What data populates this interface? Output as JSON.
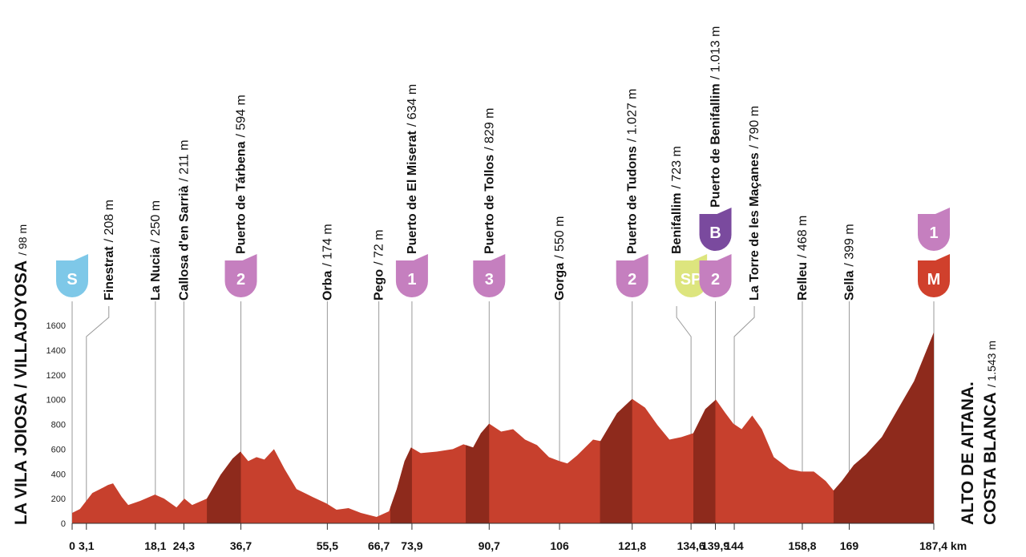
{
  "chart_data": {
    "type": "area",
    "color": "#c7402d",
    "climb_color": "#8e2a1c",
    "x": [
      0,
      1.7,
      4.4,
      6.1,
      7.8,
      8.9,
      10.8,
      12.2,
      14.8,
      18.0,
      20.0,
      22.7,
      24.4,
      26.1,
      29.3,
      32.3,
      34.9,
      36.6,
      38.3,
      40.1,
      41.8,
      43.9,
      46.2,
      48.8,
      52.3,
      55.3,
      57.5,
      60.1,
      62.8,
      66.2,
      68.9,
      70.6,
      72.3,
      73.7,
      75.8,
      79.3,
      82.8,
      85.1,
      87.2,
      88.9,
      90.7,
      93.3,
      95.9,
      98.5,
      101.1,
      103.7,
      106.0,
      107.7,
      109.8,
      113.3,
      114.9,
      118.5,
      121.8,
      124.6,
      127.3,
      129.9,
      132.5,
      135.1,
      137.7,
      140.0,
      142.1,
      143.8,
      145.6,
      147.9,
      150.0,
      152.6,
      156.0,
      158.6,
      161.3,
      163.9,
      165.6,
      167.4,
      170.0,
      172.6,
      176.1,
      179.6,
      183.1,
      187.4
    ],
    "values": [
      84,
      116,
      245,
      277,
      310,
      323,
      213,
      148,
      181,
      232,
      200,
      129,
      200,
      148,
      200,
      393,
      523,
      580,
      503,
      535,
      516,
      600,
      439,
      277,
      213,
      161,
      110,
      123,
      84,
      52,
      97,
      277,
      503,
      613,
      568,
      580,
      600,
      639,
      613,
      729,
      806,
      742,
      761,
      677,
      632,
      535,
      503,
      484,
      548,
      677,
      665,
      890,
      1006,
      935,
      794,
      677,
      697,
      729,
      923,
      1000,
      890,
      806,
      761,
      871,
      761,
      535,
      439,
      419,
      419,
      342,
      265,
      342,
      471,
      555,
      697,
      923,
      1148,
      1543
    ],
    "climbs": [
      {
        "start": 29.3,
        "end": 36.7
      },
      {
        "start": 69.2,
        "end": 73.9
      },
      {
        "start": 85.6,
        "end": 90.7
      },
      {
        "start": 114.8,
        "end": 121.8
      },
      {
        "start": 135.1,
        "end": 139.9
      },
      {
        "start": 165.6,
        "end": 187.4
      }
    ],
    "xlim": [
      0,
      187.4
    ],
    "ylim": [
      0,
      1600
    ],
    "yticks": [
      0,
      200,
      400,
      600,
      800,
      1000,
      1200,
      1400,
      1600
    ],
    "xticks": [
      0,
      {
        "value": 3.1,
        "label": "3,1"
      },
      {
        "value": 18.1,
        "label": "18,1"
      },
      {
        "value": 24.3,
        "label": "24,3"
      },
      {
        "value": 36.7,
        "label": "36,7"
      },
      {
        "value": 55.5,
        "label": "55,5"
      },
      {
        "value": 66.7,
        "label": "66,7"
      },
      {
        "value": 73.9,
        "label": "73,9"
      },
      {
        "value": 90.7,
        "label": "90,7"
      },
      106,
      {
        "value": 121.8,
        "label": "121,8"
      },
      {
        "value": 134.6,
        "label": "134,6"
      },
      {
        "value": 139.9,
        "label": "139,9"
      },
      144,
      {
        "value": 158.8,
        "label": "158,8"
      },
      169,
      {
        "value": 187.4,
        "label": "187,4 km"
      }
    ],
    "waypoints": [
      {
        "name": [
          "LA VILA JOIOSA / VILLAJOYOSA"
        ],
        "altitude": "/ 98 m",
        "badges": [
          {
            "text": "S",
            "color": "#7ec8e8"
          }
        ]
      },
      {
        "name": [
          "Finestrat"
        ],
        "altitude": "/ 208 m",
        "badges": []
      },
      {
        "name": [
          "La Nucia"
        ],
        "altitude": "/ 250 m",
        "badges": []
      },
      {
        "name": [
          "Callosa d'en Sarrià"
        ],
        "altitude": "/ 211 m",
        "badges": []
      },
      {
        "name": [
          "Puerto de Tárbena"
        ],
        "altitude": "/ 594 m",
        "badges": [
          {
            "text": "2",
            "color": "#c57fbf"
          }
        ]
      },
      {
        "name": [
          "Orba"
        ],
        "altitude": "/ 174 m",
        "badges": []
      },
      {
        "name": [
          "Pego"
        ],
        "altitude": "/ 72 m",
        "badges": []
      },
      {
        "name": [
          "Puerto de El Miserat"
        ],
        "altitude": "/ 634 m",
        "badges": [
          {
            "text": "1",
            "color": "#c57fbf"
          }
        ]
      },
      {
        "name": [
          "Puerto de Tollos"
        ],
        "altitude": "/ 829 m",
        "badges": [
          {
            "text": "3",
            "color": "#c57fbf"
          }
        ]
      },
      {
        "name": [
          "Gorga"
        ],
        "altitude": "/ 550 m",
        "badges": []
      },
      {
        "name": [
          "Puerto de Tudons"
        ],
        "altitude": "/ 1.027 m",
        "badges": [
          {
            "text": "2",
            "color": "#c57fbf"
          }
        ]
      },
      {
        "name": [
          "Benifallim"
        ],
        "altitude": "/ 723 m",
        "badges": [
          {
            "text": "SP",
            "color": "#dde57e"
          }
        ]
      },
      {
        "name": [
          "Puerto de Benifallim"
        ],
        "altitude": "/ 1.013 m",
        "badges": [
          {
            "text": "2",
            "color": "#c57fbf"
          },
          {
            "text": "B",
            "color": "#7a4a9e"
          }
        ]
      },
      {
        "name": [
          "La Torre de les Maçanes"
        ],
        "altitude": "/ 790 m",
        "badges": []
      },
      {
        "name": [
          "Relleu"
        ],
        "altitude": "/ 468 m",
        "badges": []
      },
      {
        "name": [
          "Sella"
        ],
        "altitude": "/ 399 m",
        "badges": []
      },
      {
        "name": [
          "ALTO DE AITANA.",
          "COSTA BLANCA"
        ],
        "altitude": "/ 1.543 m",
        "badges": [
          {
            "text": "M",
            "color": "#d0402c"
          },
          {
            "text": "1",
            "color": "#c57fbf"
          }
        ]
      }
    ]
  }
}
